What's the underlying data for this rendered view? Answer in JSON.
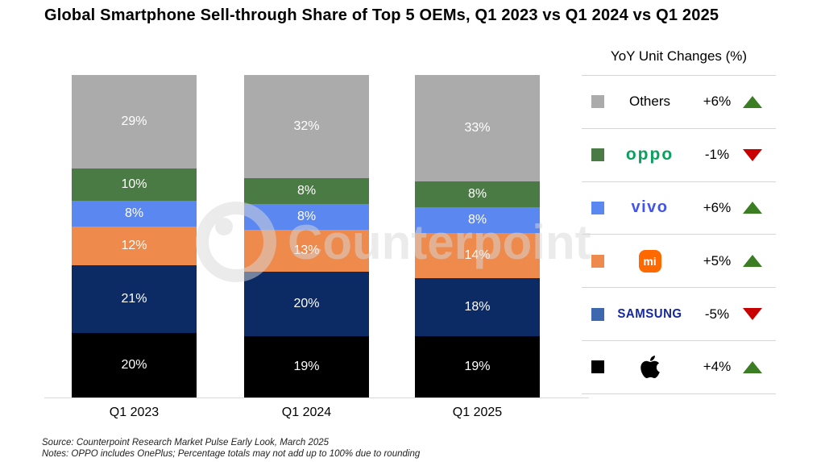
{
  "title": "Global Smartphone Sell-through Share of Top 5 OEMs, Q1 2023 vs Q1 2024 vs Q1 2025",
  "watermark": {
    "text": "Counterpoint"
  },
  "chart_data": {
    "type": "bar",
    "stacked": true,
    "title": "Global Smartphone Sell-through Share of Top 5 OEMs, Q1 2023 vs Q1 2024 vs Q1 2025",
    "categories": [
      "Q1 2023",
      "Q1 2024",
      "Q1 2025"
    ],
    "series": [
      {
        "name": "Apple",
        "color": "#000000",
        "values": [
          20,
          19,
          19
        ]
      },
      {
        "name": "Samsung",
        "color": "#0c2a63",
        "values": [
          21,
          20,
          18
        ]
      },
      {
        "name": "Xiaomi",
        "color": "#ed8a4c",
        "values": [
          12,
          13,
          14
        ]
      },
      {
        "name": "vivo",
        "color": "#5b88f0",
        "values": [
          8,
          8,
          8
        ]
      },
      {
        "name": "OPPO",
        "color": "#4a7b44",
        "values": [
          10,
          8,
          8
        ]
      },
      {
        "name": "Others",
        "color": "#ababab",
        "values": [
          29,
          32,
          33
        ]
      }
    ],
    "value_suffix": "%",
    "ylim": [
      0,
      100
    ],
    "grid": false,
    "legend_position": "right"
  },
  "legend": {
    "title": "YoY Unit Changes (%)",
    "up_color": "#3a7d23",
    "down_color": "#c80000",
    "rows": [
      {
        "name": "Others",
        "logo_type": "plain",
        "logo_text": "Others",
        "swatch": "#ababab",
        "change": "+6%",
        "direction": "up"
      },
      {
        "name": "OPPO",
        "logo_type": "oppo",
        "logo_text": "oppo",
        "swatch": "#4a7b44",
        "change": "-1%",
        "direction": "down"
      },
      {
        "name": "vivo",
        "logo_type": "vivo",
        "logo_text": "vivo",
        "swatch": "#5b88f0",
        "change": "+6%",
        "direction": "up"
      },
      {
        "name": "Xiaomi",
        "logo_type": "mi",
        "logo_text": "mi",
        "swatch": "#ed8a4c",
        "change": "+5%",
        "direction": "up"
      },
      {
        "name": "Samsung",
        "logo_type": "samsung",
        "logo_text": "SAMSUNG",
        "swatch": "#3e68ae",
        "change": "-5%",
        "direction": "down"
      },
      {
        "name": "Apple",
        "logo_type": "apple",
        "logo_text": "",
        "swatch": "#000000",
        "change": "+4%",
        "direction": "up"
      }
    ]
  },
  "footer": {
    "source": "Source: Counterpoint Research Market Pulse Early Look, March 2025",
    "notes": "Notes: OPPO includes OnePlus; Percentage totals may not add up to 100% due to rounding"
  }
}
